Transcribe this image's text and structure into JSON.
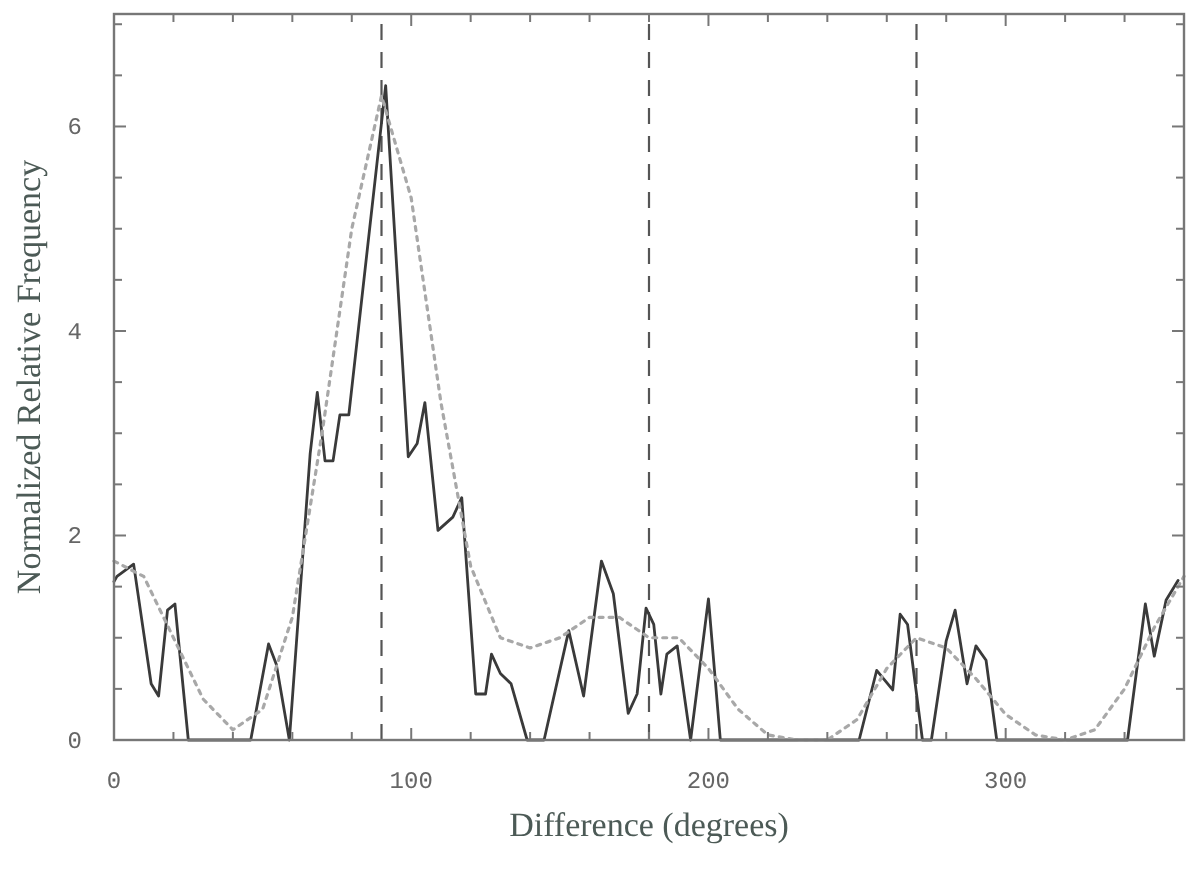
{
  "chart_data": {
    "type": "line",
    "xlabel": "Difference (degrees)",
    "ylabel": "Normalized Relative Frequency",
    "xlim": [
      0,
      360
    ],
    "ylim": [
      0,
      7.1
    ],
    "xticks": [
      0,
      {
        "value": 20,
        "label": null
      },
      {
        "value": 40,
        "label": null
      },
      {
        "value": 60,
        "label": null
      },
      {
        "value": 80,
        "label": null
      },
      100,
      {
        "value": 120,
        "label": null
      },
      {
        "value": 140,
        "label": null
      },
      {
        "value": 160,
        "label": null
      },
      {
        "value": 180,
        "label": null
      },
      200,
      {
        "value": 220,
        "label": null
      },
      {
        "value": 240,
        "label": null
      },
      {
        "value": 260,
        "label": null
      },
      {
        "value": 280,
        "label": null
      },
      300,
      {
        "value": 320,
        "label": null
      },
      {
        "value": 340,
        "label": null
      }
    ],
    "yticks": [
      0,
      {
        "value": 0.5,
        "label": null
      },
      {
        "value": 1,
        "label": null
      },
      {
        "value": 1.5,
        "label": null
      },
      2,
      {
        "value": 2.5,
        "label": null
      },
      {
        "value": 3,
        "label": null
      },
      {
        "value": 3.5,
        "label": null
      },
      4,
      {
        "value": 4.5,
        "label": null
      },
      {
        "value": 5,
        "label": null
      },
      {
        "value": 5.5,
        "label": null
      },
      6,
      {
        "value": 6.5,
        "label": null
      },
      {
        "value": 7,
        "label": null
      }
    ],
    "series": [
      {
        "color": "#3a3a3a",
        "line_style": "solid",
        "x": [
          0,
          1,
          6.6,
          12.5,
          15,
          18,
          20.5,
          25,
          46,
          52,
          54.6,
          59,
          66,
          68.4,
          71,
          73.7,
          76,
          79,
          91.4,
          99,
          102,
          104.6,
          109,
          114,
          117,
          121.7,
          125,
          127,
          130,
          133.6,
          139,
          144.7,
          153,
          158,
          164,
          168,
          173,
          176,
          179,
          181.6,
          184,
          186,
          189.5,
          194,
          200,
          204,
          250.7,
          256.6,
          262,
          264.5,
          267,
          272,
          275,
          280,
          283,
          287,
          290,
          293.4,
          297,
          341,
          347,
          350,
          354,
          358
        ],
        "values": [
          1.55,
          1.6,
          1.72,
          0.55,
          0.43,
          1.27,
          1.33,
          0,
          0,
          0.94,
          0.74,
          0,
          2.8,
          3.4,
          2.73,
          2.73,
          3.18,
          3.18,
          6.4,
          2.77,
          2.9,
          3.3,
          2.05,
          2.18,
          2.37,
          0.45,
          0.45,
          0.84,
          0.65,
          0.55,
          0,
          0,
          1.07,
          0.43,
          1.75,
          1.43,
          0.26,
          0.45,
          1.29,
          1.13,
          0.45,
          0.84,
          0.92,
          0,
          1.38,
          0,
          0,
          0.68,
          0.49,
          1.23,
          1.13,
          0,
          0,
          0.97,
          1.27,
          0.55,
          0.92,
          0.78,
          0,
          0,
          1.33,
          0.82,
          1.37,
          1.56
        ]
      },
      {
        "color": "#a8a8a8",
        "line_style": "dotted",
        "x": [
          0,
          10,
          20,
          30,
          40,
          50,
          60,
          70,
          80,
          90,
          100,
          110,
          120,
          130,
          140,
          150,
          160,
          170,
          180,
          190,
          200,
          210,
          220,
          230,
          240,
          250,
          260,
          270,
          280,
          290,
          300,
          310,
          320,
          330,
          340,
          350,
          360
        ],
        "values": [
          1.75,
          1.6,
          1.0,
          0.4,
          0.1,
          0.3,
          1.2,
          3.0,
          5.0,
          6.3,
          5.3,
          3.3,
          1.7,
          1.0,
          0.9,
          1.0,
          1.2,
          1.2,
          1.0,
          1.0,
          0.7,
          0.3,
          0.05,
          0,
          0,
          0.2,
          0.7,
          1.0,
          0.9,
          0.6,
          0.25,
          0.05,
          0,
          0.1,
          0.5,
          1.1,
          1.6
        ]
      }
    ],
    "ref_lines": [
      {
        "axis": "x",
        "value": 90,
        "color": "#555555",
        "line_style": "dashed"
      },
      {
        "axis": "x",
        "value": 180,
        "color": "#555555",
        "line_style": "dashed"
      },
      {
        "axis": "x",
        "value": 270,
        "color": "#555555",
        "line_style": "dashed"
      }
    ]
  }
}
